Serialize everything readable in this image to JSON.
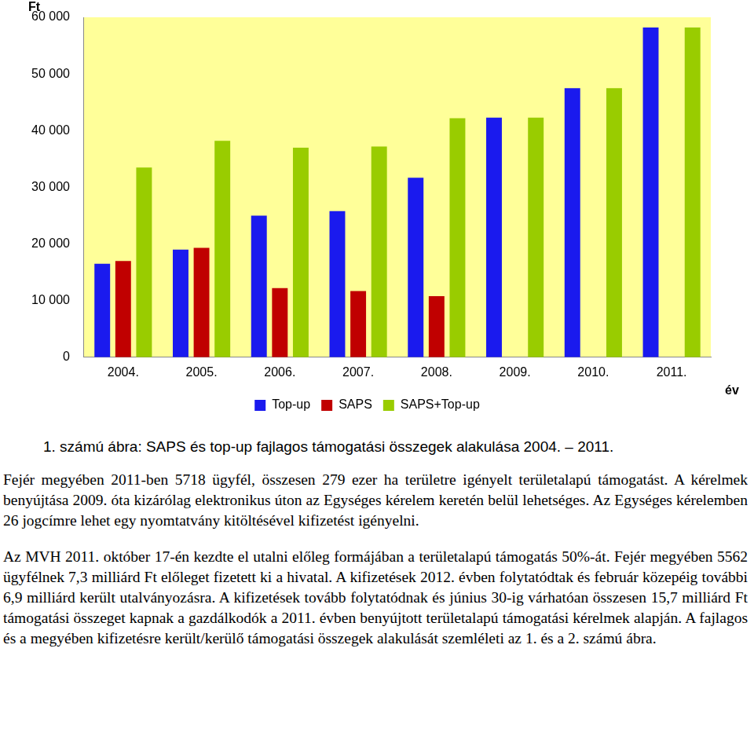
{
  "chart_data": {
    "type": "bar",
    "categories": [
      "2004.",
      "2005.",
      "2006.",
      "2007.",
      "2008.",
      "2009.",
      "2010.",
      "2011."
    ],
    "series": [
      {
        "name": "Top-up",
        "color": "#1a1aee",
        "values": [
          16500,
          19000,
          25000,
          25800,
          31700,
          42300,
          47500,
          58200
        ]
      },
      {
        "name": "SAPS",
        "color": "#c00000",
        "values": [
          17000,
          19300,
          12200,
          11700,
          10800,
          0,
          0,
          0
        ]
      },
      {
        "name": "SAPS+Top-up",
        "color": "#99cc00",
        "values": [
          33500,
          38200,
          37000,
          37200,
          42200,
          42300,
          47500,
          58200
        ]
      }
    ],
    "x_label": "év",
    "y_label": "Ft",
    "ylim": [
      0,
      60000
    ],
    "yticks": [
      0,
      {
        "value": 10000,
        "label": "10 000"
      },
      {
        "value": 20000,
        "label": "20 000"
      },
      {
        "value": 30000,
        "label": "30 000"
      },
      {
        "value": 40000,
        "label": "40 000"
      },
      {
        "value": 50000,
        "label": "50 000"
      },
      {
        "value": 60000,
        "label": "60 000"
      }
    ],
    "grid": false,
    "legend": "bottom"
  },
  "document": {
    "caption": "1. számú ábra: SAPS és top-up fajlagos támogatási összegek alakulása 2004. – 2011.",
    "paragraphs": [
      "Fejér megyében 2011-ben 5718 ügyfél, összesen 279 ezer ha területre igényelt területalapú támogatást. A kérelmek benyújtása 2009. óta kizárólag elektronikus úton az Egységes kérelem keretén belül lehetséges. Az Egységes kérelemben 26 jogcímre lehet egy nyomtatvány kitöltésével kifizetést igényelni.",
      "Az MVH 2011. október 17-én kezdte el utalni előleg formájában a területalapú támogatás 50%-át. Fejér megyében 5562 ügyfélnek 7,3 milliárd Ft előleget fizetett ki a hivatal. A kifizetések 2012. évben folytatódtak és február közepéig további 6,9 milliárd került utalványozásra. A kifizetések tovább folytatódnak és június 30-ig várhatóan összesen 15,7 milliárd Ft támogatási összeget kapnak a gazdálkodók a 2011. évben benyújtott területalapú támogatási kérelmek alapján. A fajlagos és a megyében kifizetésre került/kerülő támogatási összegek alakulását szemléleti az 1. és a 2. számú ábra."
    ]
  }
}
